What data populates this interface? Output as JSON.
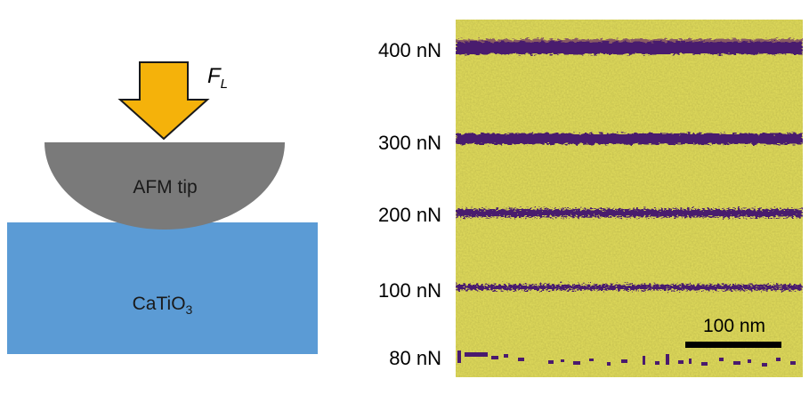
{
  "schematic": {
    "force_symbol": "F",
    "force_subscript": "L",
    "tip_label": "AFM tip",
    "substrate_label_main": "CaTiO",
    "substrate_label_sub": "3",
    "colors": {
      "arrow_fill": "#f5b20a",
      "arrow_stroke": "#1a1a1a",
      "tip": "#7a7a7a",
      "substrate": "#5b9bd5"
    }
  },
  "afm_image": {
    "load_labels": [
      "400 nN",
      "300 nN",
      "200 nN",
      "100 nN",
      "80 nN"
    ],
    "scale_bar_label": "100 nm",
    "colors": {
      "background": "#ddd85a",
      "written_line": "#4a1a6e"
    }
  }
}
